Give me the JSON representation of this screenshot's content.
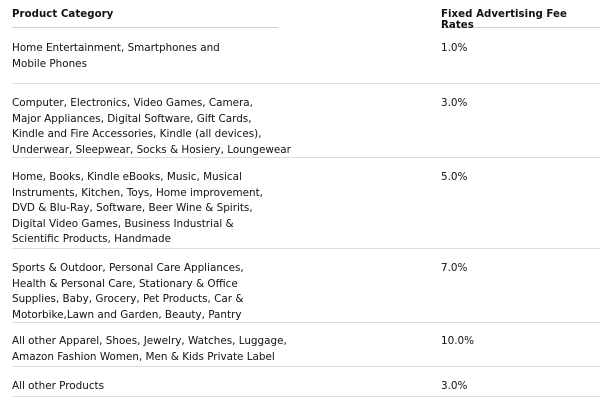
{
  "table": {
    "headers": {
      "category": "Product Category",
      "rate": "Fixed Advertising Fee Rates"
    },
    "rows": [
      {
        "category_lines": [
          "Home Entertainment, Smartphones and",
          "Mobile Phones"
        ],
        "rate": "1.0%"
      },
      {
        "category_lines": [
          "Computer, Electronics, Video Games, Camera,",
          "Major Appliances, Digital Software, Gift Cards,",
          "Kindle and Fire Accessories, Kindle (all devices),",
          "Underwear, Sleepwear, Socks & Hosiery, Loungewear"
        ],
        "rate": "3.0%"
      },
      {
        "category_lines": [
          "Home, Books, Kindle eBooks, Music, Musical",
          "Instruments, Kitchen, Toys, Home improvement,",
          "DVD & Blu-Ray, Software, Beer Wine & Spirits,",
          "Digital Video Games, Business Industrial &",
          "Scientific Products, Handmade"
        ],
        "rate": "5.0%"
      },
      {
        "category_lines": [
          "Sports & Outdoor, Personal Care Appliances,",
          "Health & Personal Care, Stationary & Office",
          "Supplies, Baby, Grocery, Pet Products, Car &",
          "Motorbike,Lawn and Garden, Beauty, Pantry"
        ],
        "rate": "7.0%"
      },
      {
        "category_lines": [
          "All other Apparel, Shoes, Jewelry, Watches, Luggage,",
          "Amazon Fashion Women, Men & Kids Private Label"
        ],
        "rate": "10.0%"
      },
      {
        "category_lines": [
          "All other Products"
        ],
        "rate": "3.0%"
      }
    ]
  }
}
